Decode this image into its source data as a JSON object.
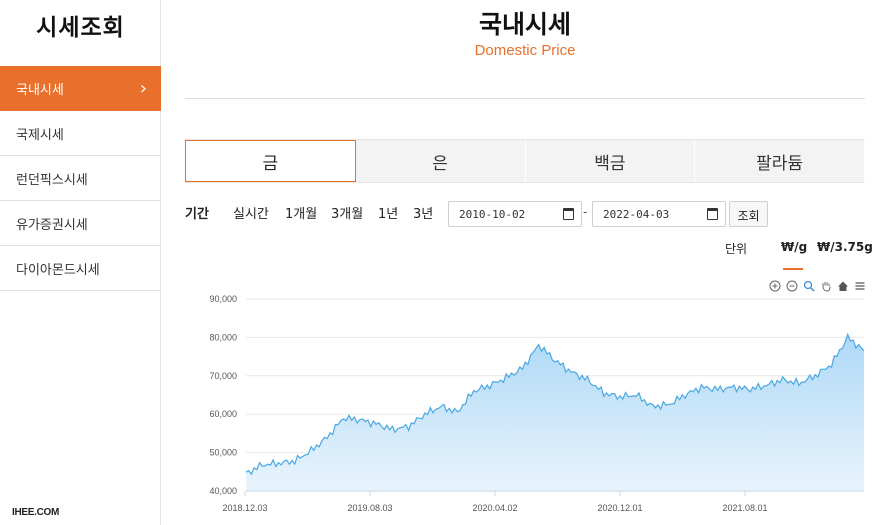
{
  "sidebar": {
    "title": "시세조회",
    "items": [
      {
        "label": "국내시세",
        "active": true
      },
      {
        "label": "국제시세",
        "active": false
      },
      {
        "label": "런던픽스시세",
        "active": false
      },
      {
        "label": "유가증권시세",
        "active": false
      },
      {
        "label": "다이아몬드시세",
        "active": false
      }
    ],
    "site_mark": "IHEE.COM"
  },
  "header": {
    "title": "국내시세",
    "subtitle": "Domestic Price"
  },
  "tabs": [
    {
      "label": "금",
      "active": true
    },
    {
      "label": "은",
      "active": false
    },
    {
      "label": "백금",
      "active": false
    },
    {
      "label": "팔라듐",
      "active": false
    }
  ],
  "period": {
    "label": "기간",
    "options": [
      "실시간",
      "1개월",
      "3개월",
      "1년",
      "3년"
    ],
    "start_date": "2010-10-02",
    "end_date": "2022-04-03",
    "separator": "-",
    "search_label": "조회"
  },
  "unit": {
    "label": "단위",
    "options": [
      "₩/g",
      "₩/3.75g"
    ],
    "selected": "₩/g"
  },
  "toolbar_icons": [
    "zoom-in-icon",
    "zoom-out-icon",
    "magnifier-icon",
    "pan-hand-icon",
    "home-icon",
    "menu-icon"
  ],
  "colors": {
    "accent": "#e8702c",
    "series_line": "#4aa8e0",
    "series_fill": "#bde0f8"
  },
  "chart_data": {
    "type": "area",
    "ylim": [
      40000,
      90000
    ],
    "y_ticks": [
      40000,
      50000,
      60000,
      70000,
      80000,
      90000
    ],
    "y_tick_labels": [
      "40,000",
      "50,000",
      "60,000",
      "70,000",
      "80,000",
      "90,000"
    ],
    "x_tick_labels": [
      "2018.12.03",
      "2019.08.03",
      "2020.04.02",
      "2020.12.01",
      "2021.08.01"
    ],
    "grid": true,
    "x": [
      "2018.10",
      "2018.12",
      "2019.02",
      "2019.04",
      "2019.06",
      "2019.07",
      "2019.08",
      "2019.09",
      "2019.10",
      "2019.11",
      "2019.12",
      "2020.01",
      "2020.02",
      "2020.03",
      "2020.04",
      "2020.05",
      "2020.06",
      "2020.07",
      "2020.08",
      "2020.09",
      "2020.10",
      "2020.11",
      "2020.12",
      "2021.01",
      "2021.02",
      "2021.03",
      "2021.04",
      "2021.05",
      "2021.06",
      "2021.07",
      "2021.08",
      "2021.09",
      "2021.10",
      "2021.11",
      "2021.12",
      "2022.01",
      "2022.02",
      "2022.03",
      "2022.04"
    ],
    "series": [
      {
        "values": [
          44500,
          46800,
          47200,
          47800,
          50500,
          54000,
          59000,
          58500,
          57500,
          56000,
          56800,
          60000,
          62000,
          60500,
          66000,
          67500,
          69500,
          72000,
          78000,
          74000,
          71000,
          69000,
          65500,
          64500,
          65000,
          62000,
          62500,
          65000,
          67000,
          66500,
          67000,
          66500,
          67500,
          69000,
          68000,
          70000,
          73000,
          80000,
          76500
        ]
      }
    ]
  }
}
